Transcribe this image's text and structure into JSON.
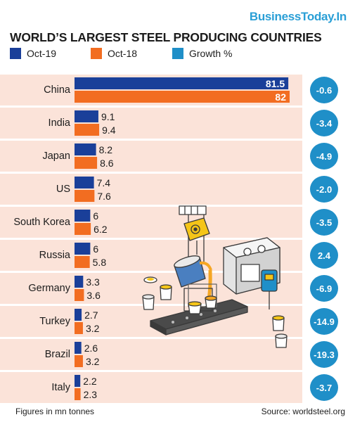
{
  "brand": "BusinessToday.In",
  "footer": {
    "note": "Figures in  mn tonnes",
    "source": "Source: worldsteel.org"
  },
  "colors": {
    "oct19": "#1a3f99",
    "oct18": "#f26d21",
    "growth": "#1f8fc8",
    "row_bg": "#fbe3d9"
  },
  "chart_data": {
    "type": "bar",
    "title": "WORLD’S LARGEST STEEL PRODUCING COUNTRIES",
    "legend": [
      "Oct-19",
      "Oct-18",
      "Growth %"
    ],
    "categories": [
      "China",
      "India",
      "Japan",
      "US",
      "South Korea",
      "Russia",
      "Germany",
      "Turkey",
      "Brazil",
      "Italy"
    ],
    "series": [
      {
        "name": "Oct-19",
        "values": [
          81.5,
          9.1,
          8.2,
          7.4,
          6,
          6,
          3.3,
          2.7,
          2.6,
          2.2
        ]
      },
      {
        "name": "Oct-18",
        "values": [
          82,
          9.4,
          8.6,
          7.6,
          6.2,
          5.8,
          3.6,
          3.2,
          3.2,
          2.3
        ]
      }
    ],
    "growth": [
      "-0.6",
      "-3.4",
      "-4.9",
      "-2.0",
      "-3.5",
      "2.4",
      "-6.9",
      "-14.9",
      "-19.3",
      "-3.7"
    ],
    "xlim": [
      0,
      82
    ]
  }
}
